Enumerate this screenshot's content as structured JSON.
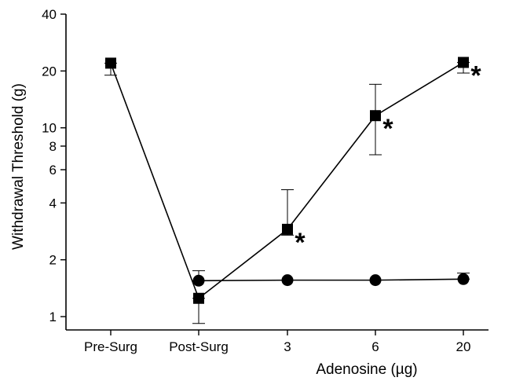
{
  "chart_data": {
    "type": "line",
    "scale": {
      "y": "log"
    },
    "categories": [
      "Pre-Surg",
      "Post-Surg",
      "3",
      "6",
      "20"
    ],
    "ylabel": "Withdrawal Threshold (g)",
    "xlabel": "Adenosine (µg)",
    "ylim": [
      0.85,
      40
    ],
    "yticks": [
      {
        "value": 1,
        "label": "1"
      },
      {
        "value": 2,
        "label": "2"
      },
      {
        "value": 4,
        "label": "4"
      },
      {
        "value": 6,
        "label": "6"
      },
      {
        "value": 8,
        "label": "8"
      },
      {
        "value": 10,
        "label": "10"
      },
      {
        "value": 20,
        "label": "20"
      },
      {
        "value": 40,
        "label": "40"
      }
    ],
    "series": [
      {
        "marker": "square",
        "points": [
          {
            "category": "Pre-Surg",
            "y": 22.0,
            "err_low": 19.0,
            "err_high": 22.0
          },
          {
            "category": "Post-Surg",
            "y": 1.25,
            "err_low": 0.92,
            "err_high": 1.25
          },
          {
            "category": "3",
            "y": 2.9,
            "err_low": 2.7,
            "err_high": 4.7
          },
          {
            "category": "6",
            "y": 11.6,
            "err_low": 7.2,
            "err_high": 17.0
          },
          {
            "category": "20",
            "y": 22.2,
            "err_low": 19.5,
            "err_high": 22.2
          }
        ]
      },
      {
        "marker": "circle",
        "points": [
          {
            "category": "Post-Surg",
            "y": 1.55,
            "err_low": 1.55,
            "err_high": 1.75
          },
          {
            "category": "3",
            "y": 1.56,
            "err_low": 1.56,
            "err_high": 1.56
          },
          {
            "category": "6",
            "y": 1.56,
            "err_low": 1.56,
            "err_high": 1.56
          },
          {
            "category": "20",
            "y": 1.58,
            "err_low": 1.58,
            "err_high": 1.7
          }
        ]
      }
    ],
    "annotations": [
      {
        "category": "3",
        "y": 2.9,
        "text": "*"
      },
      {
        "category": "6",
        "y": 11.6,
        "text": "*"
      },
      {
        "category": "20",
        "y": 22.2,
        "text": "*"
      }
    ]
  }
}
